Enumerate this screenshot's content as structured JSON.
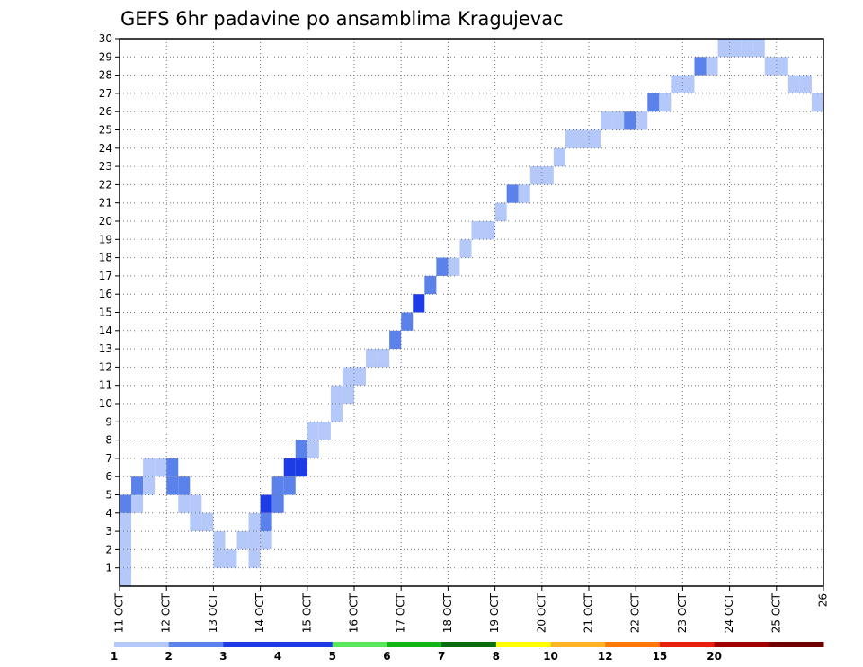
{
  "chart_data": {
    "type": "heatmap",
    "title": "GEFS 6hr padavine po ansamblima Kragujevac",
    "x_tick_labels": [
      "11 OCT",
      "12 OCT",
      "13 OCT",
      "14 OCT",
      "15 OCT",
      "16 OCT",
      "17 OCT",
      "18 OCT",
      "19 OCT",
      "20 OCT",
      "21 OCT",
      "22 OCT",
      "23 OCT",
      "24 OCT",
      "25 OCT",
      "26"
    ],
    "y_tick_labels": [
      "1",
      "2",
      "3",
      "4",
      "5",
      "6",
      "7",
      "8",
      "9",
      "10",
      "11",
      "12",
      "13",
      "14",
      "15",
      "16",
      "17",
      "18",
      "19",
      "20",
      "21",
      "22",
      "23",
      "24",
      "25",
      "26",
      "27",
      "28",
      "29",
      "30"
    ],
    "x_range_days": [
      0,
      15
    ],
    "y_range": [
      0,
      30
    ],
    "time_step_days": 0.25,
    "grid": "dotted",
    "legend": {
      "position": "bottom",
      "labels": [
        "1",
        "2",
        "3",
        "4",
        "5",
        "6",
        "7",
        "8",
        "10",
        "12",
        "15",
        "20"
      ],
      "colors": [
        "#b4c8fa",
        "#5a82ea",
        "#1e3ce6",
        "#1e3ce6",
        "#5ae65a",
        "#14b414",
        "#0a6e0a",
        "#ffff00",
        "#ffb428",
        "#ff780a",
        "#e61e0a",
        "#a00000",
        "#6e0000"
      ]
    },
    "cells": [
      [
        0,
        0,
        1
      ],
      [
        0,
        1,
        1
      ],
      [
        0,
        2,
        1
      ],
      [
        0,
        3,
        1
      ],
      [
        0,
        4,
        2
      ],
      [
        1,
        4,
        1
      ],
      [
        1,
        5,
        2
      ],
      [
        2,
        5,
        1
      ],
      [
        2,
        6,
        1
      ],
      [
        3,
        6,
        1
      ],
      [
        4,
        6,
        2
      ],
      [
        4,
        5,
        2
      ],
      [
        5,
        5,
        2
      ],
      [
        5,
        4,
        1
      ],
      [
        6,
        4,
        1
      ],
      [
        6,
        3,
        1
      ],
      [
        7,
        3,
        1
      ],
      [
        8,
        2,
        1
      ],
      [
        8,
        1,
        1
      ],
      [
        9,
        1,
        1
      ],
      [
        10,
        2,
        1
      ],
      [
        11,
        1,
        1
      ],
      [
        11,
        2,
        1
      ],
      [
        11,
        3,
        1
      ],
      [
        12,
        2,
        1
      ],
      [
        12,
        3,
        2
      ],
      [
        12,
        4,
        3
      ],
      [
        13,
        4,
        2
      ],
      [
        13,
        5,
        2
      ],
      [
        14,
        5,
        2
      ],
      [
        14,
        6,
        3
      ],
      [
        15,
        6,
        3
      ],
      [
        15,
        7,
        2
      ],
      [
        16,
        7,
        1
      ],
      [
        16,
        8,
        1
      ],
      [
        17,
        8,
        1
      ],
      [
        18,
        9,
        1
      ],
      [
        18,
        10,
        1
      ],
      [
        19,
        10,
        1
      ],
      [
        19,
        11,
        1
      ],
      [
        20,
        11,
        1
      ],
      [
        21,
        12,
        1
      ],
      [
        22,
        12,
        1
      ],
      [
        23,
        13,
        2
      ],
      [
        24,
        14,
        2
      ],
      [
        25,
        15,
        3
      ],
      [
        26,
        16,
        2
      ],
      [
        27,
        17,
        2
      ],
      [
        28,
        17,
        1
      ],
      [
        29,
        18,
        1
      ],
      [
        30,
        19,
        1
      ],
      [
        31,
        19,
        1
      ],
      [
        32,
        20,
        1
      ],
      [
        33,
        21,
        2
      ],
      [
        34,
        21,
        1
      ],
      [
        35,
        22,
        1
      ],
      [
        36,
        22,
        1
      ],
      [
        37,
        23,
        1
      ],
      [
        38,
        24,
        1
      ],
      [
        39,
        24,
        1
      ],
      [
        40,
        24,
        1
      ],
      [
        41,
        25,
        1
      ],
      [
        42,
        25,
        1
      ],
      [
        43,
        25,
        2
      ],
      [
        44,
        25,
        1
      ],
      [
        45,
        26,
        2
      ],
      [
        46,
        26,
        1
      ],
      [
        47,
        27,
        1
      ],
      [
        48,
        27,
        1
      ],
      [
        49,
        28,
        2
      ],
      [
        50,
        28,
        1
      ],
      [
        51,
        29,
        1
      ],
      [
        52,
        29,
        1
      ],
      [
        53,
        29,
        1
      ],
      [
        54,
        29,
        1
      ],
      [
        55,
        28,
        1
      ],
      [
        56,
        28,
        1
      ],
      [
        57,
        27,
        1
      ],
      [
        58,
        27,
        1
      ],
      [
        59,
        26,
        1
      ]
    ]
  }
}
